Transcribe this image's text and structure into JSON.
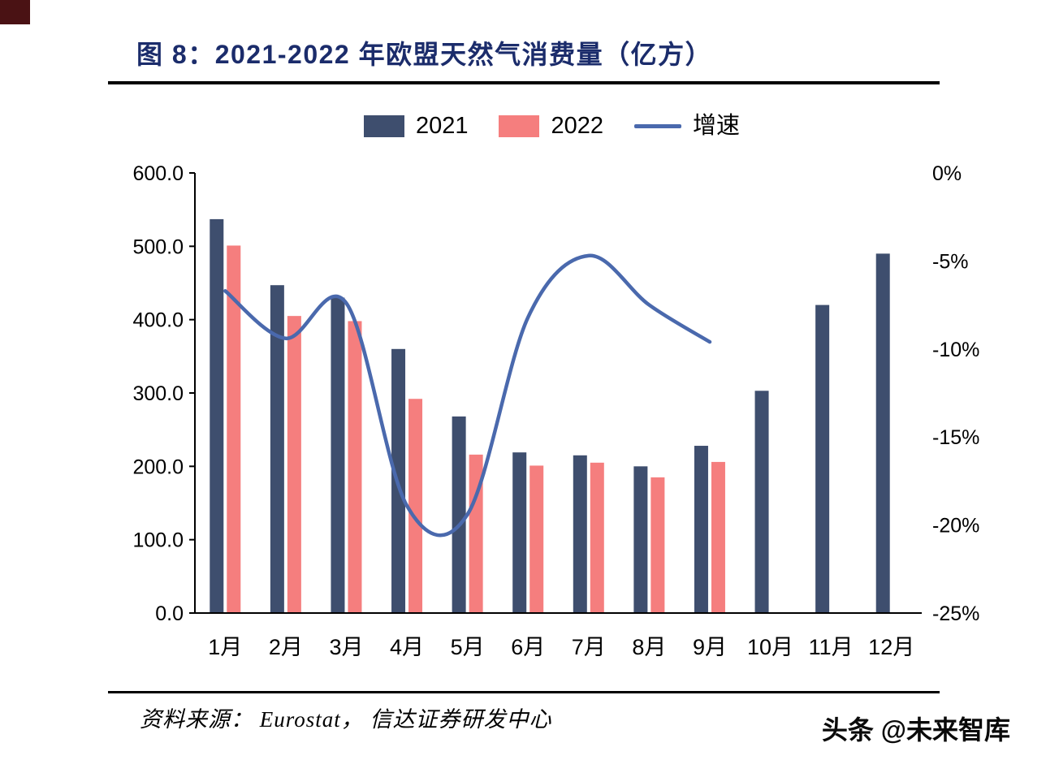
{
  "page": {
    "title": "图 8：2021-2022 年欧盟天然气消费量（亿方）",
    "title_color": "#1b2c6b",
    "corner_mark_color": "#4a1214",
    "source": "资料来源： Eurostat， 信达证券研发中心",
    "watermark": "头条 @未来智库"
  },
  "chart_data": {
    "type": "bar+line",
    "title": "2021-2022 年欧盟天然气消费量（亿方）",
    "categories": [
      "1月",
      "2月",
      "3月",
      "4月",
      "5月",
      "6月",
      "7月",
      "8月",
      "9月",
      "10月",
      "11月",
      "12月"
    ],
    "series": [
      {
        "name": "2021",
        "type": "bar",
        "color": "#3e4e6e",
        "values": [
          537,
          447,
          430,
          360,
          268,
          219,
          215,
          200,
          228,
          303,
          420,
          490
        ]
      },
      {
        "name": "2022",
        "type": "bar",
        "color": "#f57e7e",
        "values": [
          501,
          405,
          398,
          292,
          216,
          201,
          205,
          185,
          206,
          null,
          null,
          null
        ]
      },
      {
        "name": "增速",
        "type": "line",
        "color": "#4a69ad",
        "axis": "right",
        "values_pct": [
          -6.7,
          -9.4,
          -7.4,
          -18.9,
          -19.4,
          -8.2,
          -4.7,
          -7.5,
          -9.6,
          null,
          null,
          null
        ]
      }
    ],
    "left_axis": {
      "min": 0,
      "max": 600,
      "step": 100,
      "labels": [
        "600.0",
        "500.0",
        "400.0",
        "300.0",
        "200.0",
        "100.0",
        "0.0"
      ]
    },
    "right_axis": {
      "min": -25,
      "max": 0,
      "step": 5,
      "labels": [
        "0%",
        "-5%",
        "-10%",
        "-15%",
        "-20%",
        "-25%"
      ]
    },
    "legend": [
      "2021",
      "2022",
      "增速"
    ],
    "legend_position": "top-center",
    "grid": false
  }
}
